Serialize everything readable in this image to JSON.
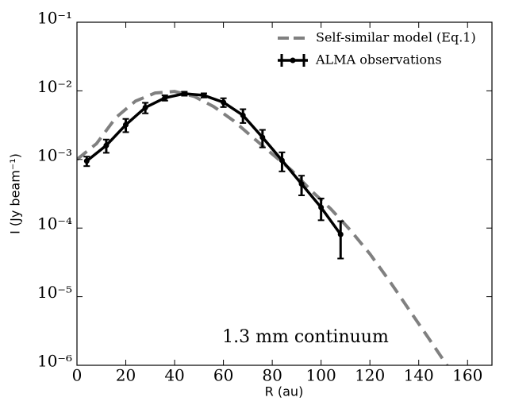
{
  "chart_data": {
    "type": "line",
    "xlabel": "R (au)",
    "ylabel": "I (Jy beam⁻¹)",
    "annotation": "1.3 mm continuum",
    "xlim": [
      0,
      170
    ],
    "ylim": [
      1e-06,
      0.1
    ],
    "yscale": "log",
    "xticks": [
      0,
      20,
      40,
      60,
      80,
      100,
      120,
      140,
      160
    ],
    "yticks": [
      {
        "value": 1e-06,
        "label": "10⁻⁶"
      },
      {
        "value": 1e-05,
        "label": "10⁻⁵"
      },
      {
        "value": 0.0001,
        "label": "10⁻⁴"
      },
      {
        "value": 0.001,
        "label": "10⁻³"
      },
      {
        "value": 0.01,
        "label": "10⁻²"
      },
      {
        "value": 0.1,
        "label": "10⁻¹"
      }
    ],
    "legend": "upper right",
    "series": [
      {
        "name": "Self-similar model (Eq.1)",
        "color": "#808080",
        "style": "dashed",
        "x": [
          0,
          8,
          16,
          24,
          32,
          40,
          48,
          56,
          64,
          72,
          80,
          88,
          96,
          104,
          112,
          120,
          128,
          136,
          144,
          152
        ],
        "values": [
          0.001,
          0.0017,
          0.0041,
          0.0071,
          0.0093,
          0.0098,
          0.0083,
          0.0059,
          0.0037,
          0.0021,
          0.0012,
          0.00069,
          0.00035,
          0.00019,
          9.3e-05,
          4.2e-05,
          1.7e-05,
          6.5e-06,
          2.5e-06,
          9.5e-07
        ]
      },
      {
        "name": "ALMA observations",
        "color": "#000000",
        "style": "solid",
        "x": [
          4,
          12,
          20,
          28,
          36,
          44,
          52,
          60,
          68,
          76,
          84,
          92,
          100,
          108
        ],
        "values": [
          0.00095,
          0.0016,
          0.0032,
          0.0057,
          0.0079,
          0.0091,
          0.0086,
          0.0068,
          0.0044,
          0.0021,
          0.00097,
          0.00044,
          0.0002,
          8.1e-05
        ],
        "errors": [
          0.00015,
          0.00035,
          0.0007,
          0.001,
          0.0007,
          0.0006,
          0.0006,
          0.001,
          0.001,
          0.0006,
          0.0003,
          0.00014,
          7e-05,
          4.5e-05
        ]
      }
    ]
  }
}
